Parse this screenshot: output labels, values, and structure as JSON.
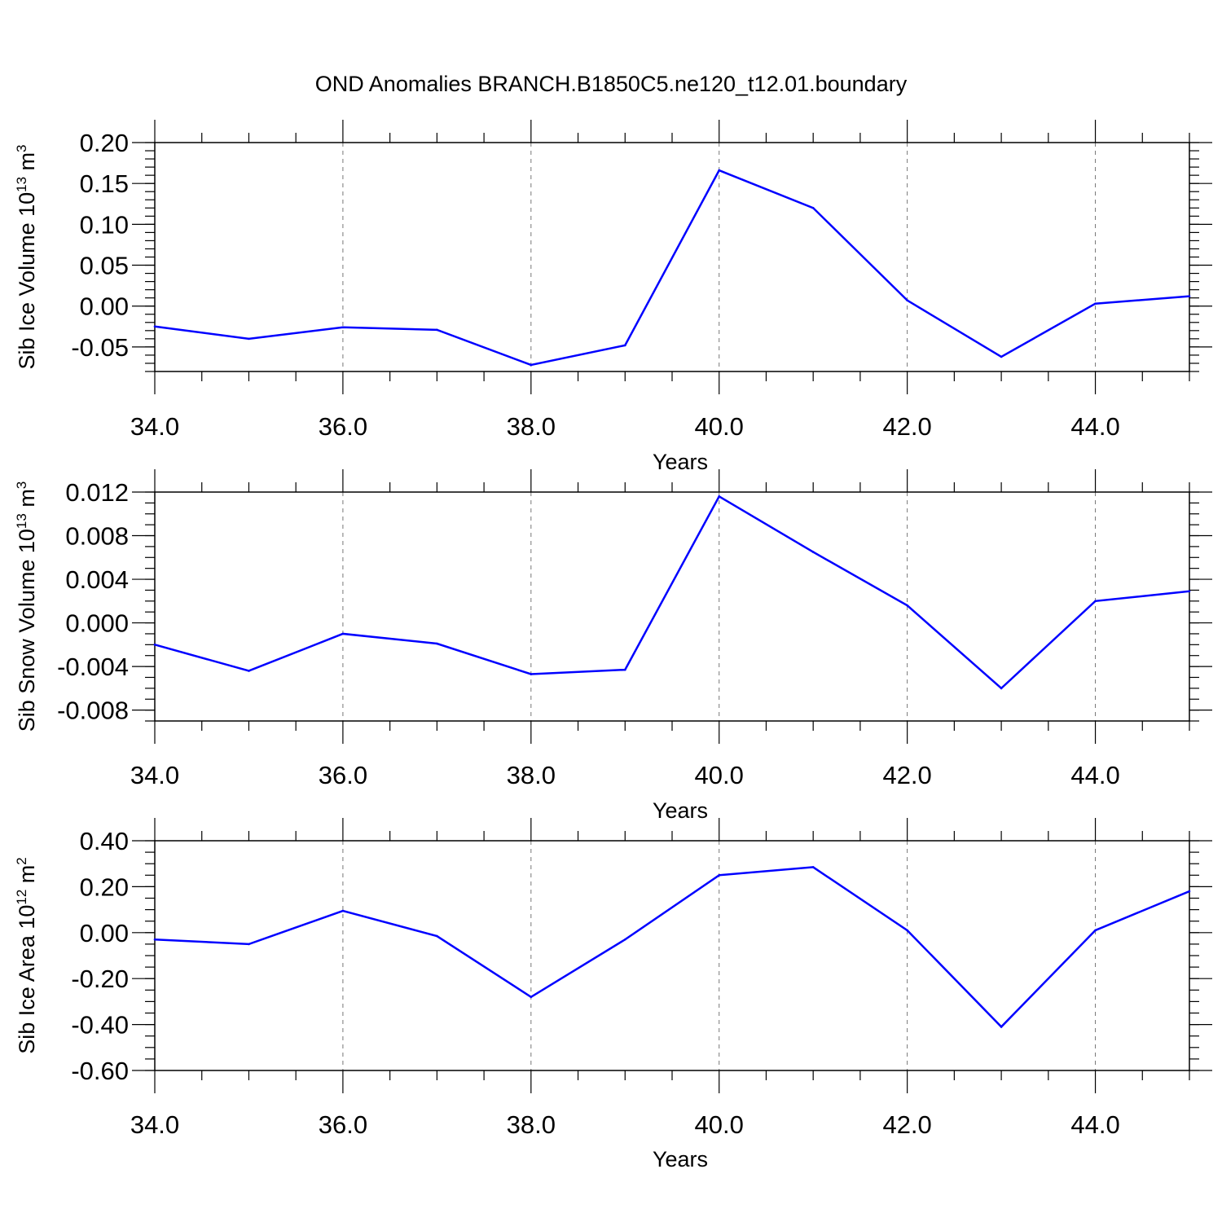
{
  "title": "OND Anomalies BRANCH.B1850C5.ne120_t12.01.boundary",
  "line_color": "#0000ff",
  "chart_data": [
    {
      "type": "line",
      "title": "OND Anomalies BRANCH.B1850C5.ne120_t12.01.boundary",
      "xlabel": "Years",
      "ylabel": "Sib Ice Volume 10^13 m^3",
      "ylabel_parts": [
        "Sib Ice Volume 10",
        "13",
        " m",
        "3"
      ],
      "xlim": [
        34,
        45
      ],
      "ylim": [
        -0.08,
        0.2
      ],
      "x_ticks": [
        34,
        36,
        38,
        40,
        42,
        44
      ],
      "x_tick_labels": [
        "34.0",
        "36.0",
        "38.0",
        "40.0",
        "42.0",
        "44.0"
      ],
      "y_ticks": [
        -0.05,
        0,
        0.05,
        0.1,
        0.15,
        0.2
      ],
      "y_tick_labels": [
        "-0.05",
        "0.00",
        "0.05",
        "0.10",
        "0.15",
        "0.20"
      ],
      "y_minor_step": 0.01,
      "x": [
        34,
        35,
        36,
        37,
        38,
        39,
        40,
        41,
        42,
        43,
        44,
        45
      ],
      "values": [
        -0.025,
        -0.04,
        -0.026,
        -0.029,
        -0.072,
        -0.048,
        0.166,
        0.12,
        0.007,
        -0.062,
        0.003,
        0.012
      ],
      "grid": "dashed vertical lines at major x ticks"
    },
    {
      "type": "line",
      "xlabel": "Years",
      "ylabel": "Sib Snow Volume 10^13 m^3",
      "ylabel_parts": [
        "Sib Snow Volume 10",
        "13",
        " m",
        "3"
      ],
      "xlim": [
        34,
        45
      ],
      "ylim": [
        -0.009,
        0.012
      ],
      "x_ticks": [
        34,
        36,
        38,
        40,
        42,
        44
      ],
      "x_tick_labels": [
        "34.0",
        "36.0",
        "38.0",
        "40.0",
        "42.0",
        "44.0"
      ],
      "y_ticks": [
        -0.008,
        -0.004,
        0,
        0.004,
        0.008,
        0.012
      ],
      "y_tick_labels": [
        "-0.008",
        "-0.004",
        "0.000",
        "0.004",
        "0.008",
        "0.012"
      ],
      "y_minor_step": 0.001,
      "x": [
        34,
        35,
        36,
        37,
        38,
        39,
        40,
        41,
        42,
        43,
        44,
        45
      ],
      "values": [
        -0.002,
        -0.0044,
        -0.001,
        -0.0019,
        -0.0047,
        -0.0043,
        0.0116,
        0.0065,
        0.0016,
        -0.006,
        0.002,
        0.0029
      ],
      "grid": "dashed vertical lines at major x ticks"
    },
    {
      "type": "line",
      "xlabel": "Years",
      "ylabel": "Sib Ice Area 10^12 m^2",
      "ylabel_parts": [
        "Sib Ice Area 10",
        "12",
        " m",
        "2"
      ],
      "xlim": [
        34,
        45
      ],
      "ylim": [
        -0.6,
        0.4
      ],
      "x_ticks": [
        34,
        36,
        38,
        40,
        42,
        44
      ],
      "x_tick_labels": [
        "34.0",
        "36.0",
        "38.0",
        "40.0",
        "42.0",
        "44.0"
      ],
      "y_ticks": [
        -0.6,
        -0.4,
        -0.2,
        0,
        0.2,
        0.4
      ],
      "y_tick_labels": [
        "-0.60",
        "-0.40",
        "-0.20",
        "0.00",
        "0.20",
        "0.40"
      ],
      "y_minor_step": 0.05,
      "x": [
        34,
        35,
        36,
        37,
        38,
        39,
        40,
        41,
        42,
        43,
        44,
        45
      ],
      "values": [
        -0.03,
        -0.05,
        0.095,
        -0.015,
        -0.28,
        -0.03,
        0.25,
        0.285,
        0.01,
        -0.41,
        0.01,
        0.18
      ],
      "grid": "dashed vertical lines at major x ticks"
    }
  ]
}
